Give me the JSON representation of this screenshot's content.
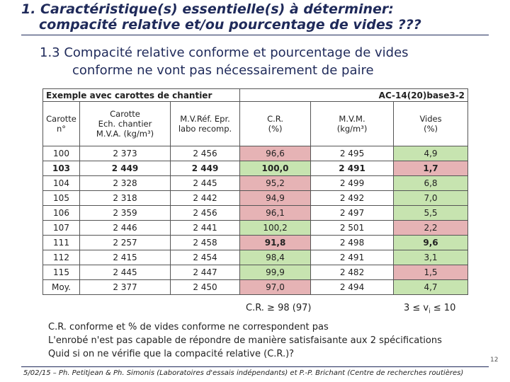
{
  "header": {
    "title": [
      "1. Caractéristique(s) essentielle(s) à déterminer:",
      "compacité relative et/ou pourcentage de vides ???"
    ],
    "section": [
      "1.3  Compacité relative conforme et pourcentage de vides",
      "conforme ne vont pas nécessairement de paire"
    ]
  },
  "table": {
    "caption_left": "Exemple avec carottes de chantier",
    "caption_right": "AC-14(20)base3-2",
    "columns": [
      [
        "Carotte",
        "n°"
      ],
      [
        "Carotte",
        "Ech. chantier",
        "M.V.A. (kg/m³)"
      ],
      [
        "M.V.Réf. Epr.",
        "labo recomp."
      ],
      [
        "C.R.",
        "(%)"
      ],
      [
        "M.V.M.",
        "(kg/m³)"
      ],
      [
        "Vides",
        "(%)"
      ]
    ],
    "rows": [
      [
        "100",
        "2 373",
        "2 456",
        "96,6",
        "2 495",
        "4,9"
      ],
      [
        "103",
        "2 449",
        "2 449",
        "100,0",
        "2 491",
        "1,7"
      ],
      [
        "104",
        "2 328",
        "2 445",
        "95,2",
        "2 499",
        "6,8"
      ],
      [
        "105",
        "2 318",
        "2 442",
        "94,9",
        "2 492",
        "7,0"
      ],
      [
        "106",
        "2 359",
        "2 456",
        "96,1",
        "2 497",
        "5,5"
      ],
      [
        "107",
        "2 446",
        "2 441",
        "100,2",
        "2 501",
        "2,2"
      ],
      [
        "111",
        "2 257",
        "2 458",
        "91,8",
        "2 498",
        "9,6"
      ],
      [
        "112",
        "2 415",
        "2 454",
        "98,4",
        "2 491",
        "3,1"
      ],
      [
        "115",
        "2 445",
        "2 447",
        "99,9",
        "2 482",
        "1,5"
      ],
      [
        "Moy.",
        "2 377",
        "2 450",
        "97,0",
        "2 494",
        "4,7"
      ]
    ]
  },
  "criteria": {
    "cr": "C.R. ≥ 98 (97)",
    "vides": [
      "3 ≤ v",
      "i",
      " ≤ 10"
    ]
  },
  "notes": [
    "C.R. conforme et % de vides conforme ne correspondent pas",
    "L'enrobé n'est pas capable de répondre de manière satisfaisante aux 2 spécifications",
    "Quid si on ne vérifie que la compacité relative (C.R.)?"
  ],
  "footer": "5/02/15 – Ph. Petitjean & Ph. Simonis (Laboratoires d'essais indépendants) et P.-P. Brichant (Centre de recherches routières)",
  "page_number": "12"
}
